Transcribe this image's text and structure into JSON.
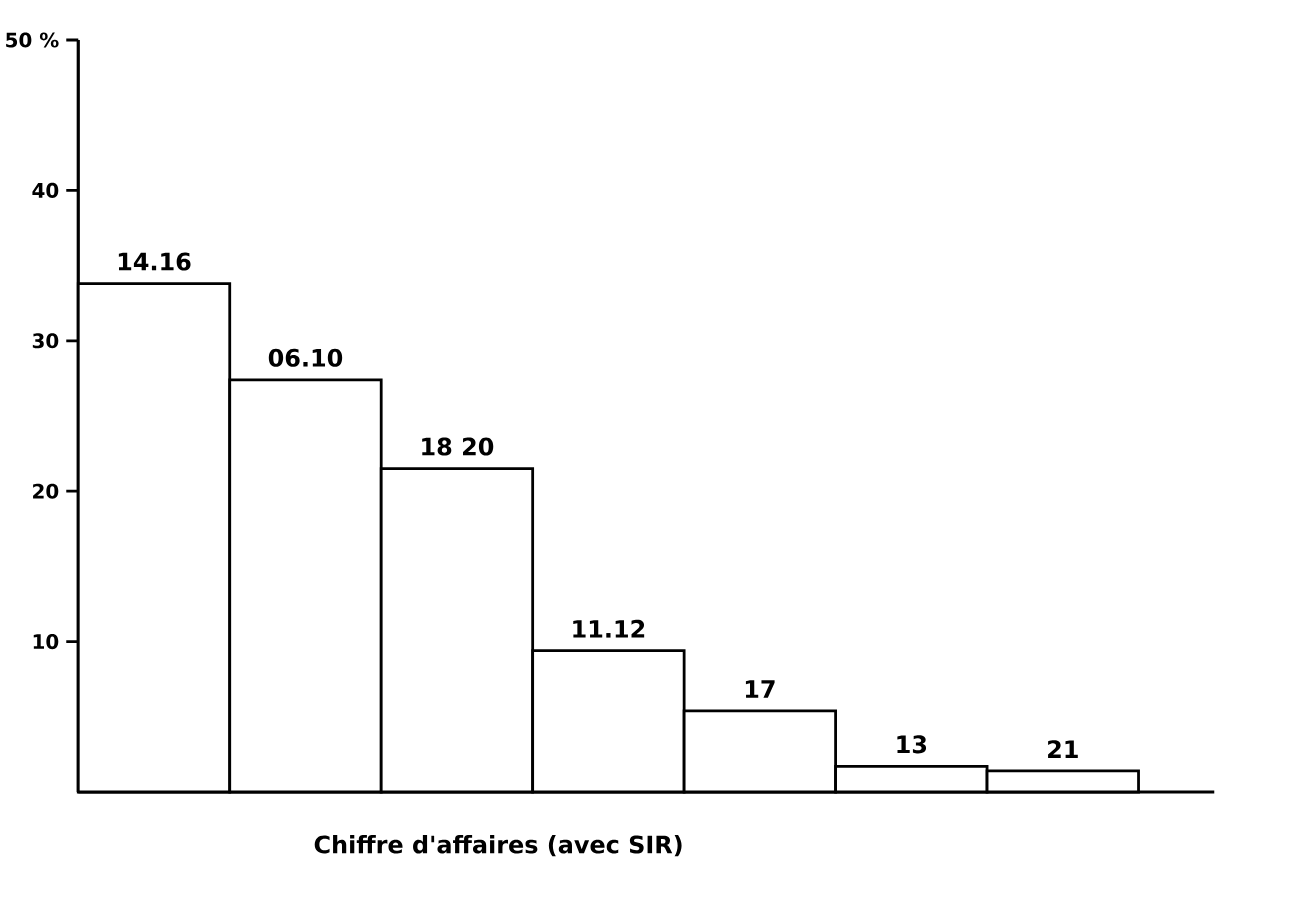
{
  "chart_data": {
    "type": "bar",
    "xlabel": "Chiffre d'affaires (avec SIR)",
    "categories": [
      "14.16",
      "06.10",
      "18 20",
      "11.12",
      "17",
      "13",
      "21"
    ],
    "values": [
      33.8,
      27.4,
      21.5,
      9.4,
      5.4,
      1.7,
      1.4
    ],
    "color": "#ffffff",
    "ylim": [
      0,
      50
    ],
    "yticks": [
      10,
      20,
      30,
      40,
      {
        "value": 50,
        "label": "50 %"
      }
    ],
    "grid": false
  }
}
